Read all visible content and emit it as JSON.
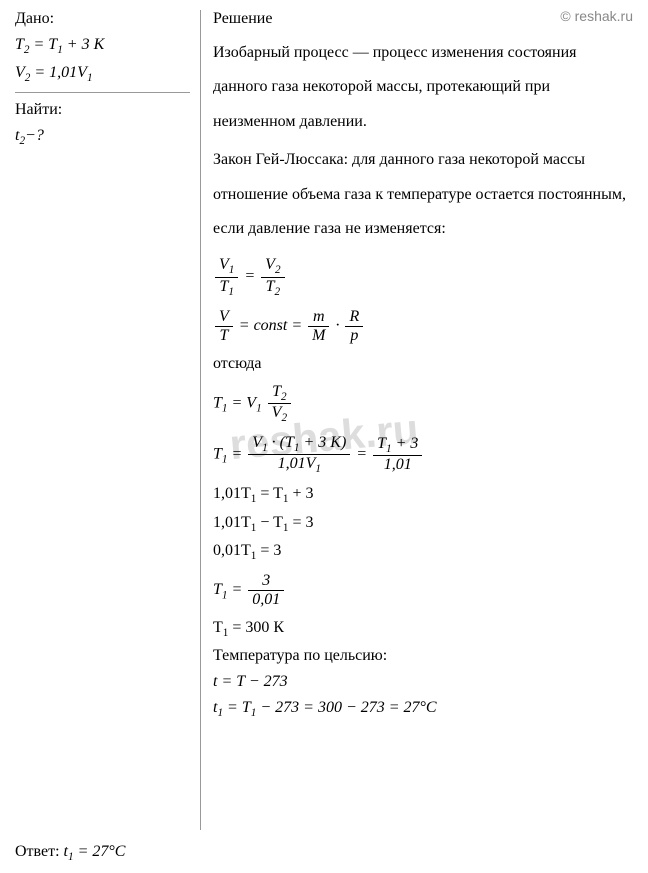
{
  "watermark": {
    "top": "© reshak.ru",
    "center": "reshak.ru"
  },
  "given": {
    "title": "Дано:",
    "line1_a": "T",
    "line1_sub1": "2",
    "line1_b": " = T",
    "line1_sub2": "1",
    "line1_c": " + 3 K",
    "line2_a": "V",
    "line2_sub1": "2",
    "line2_b": " = 1,01V",
    "line2_sub2": "1"
  },
  "find": {
    "title": "Найти:",
    "line_a": "t",
    "line_sub": "2",
    "line_b": "−?"
  },
  "solution": {
    "title": "Решение",
    "para1": "Изобарный процесс — процесс изменения состояния данного газа некоторой массы, протекающий при неизменном давлении.",
    "para2": "Закон Гей-Люссака: для данного газа некоторой массы отношение объема газа к температуре остается постоянным, если давление газа не изменяется:",
    "word_otsjuda": "отсюда",
    "eq3_a": "1,01T",
    "eq3_sub": "1",
    "eq3_b": " = T",
    "eq3_c": " + 3",
    "eq4_a": "1,01T",
    "eq4_sub": "1",
    "eq4_b": " − T",
    "eq4_c": " = 3",
    "eq5_a": "0,01T",
    "eq5_sub": "1",
    "eq5_b": " = 3",
    "eq6_lhs": "T",
    "eq6_sub": "1",
    "eq6_eq": " = ",
    "eq6_num": "3",
    "eq6_den": "0,01",
    "eq7_a": "T",
    "eq7_sub": "1",
    "eq7_b": " = 300 К",
    "celsius_label": "Температура по цельсию:",
    "eq8": "t = T − 273",
    "eq9_a": "t",
    "eq9_sub": "1",
    "eq9_b": " = T",
    "eq9_c": " − 273 = 300 − 273 = 27°C",
    "f1_n1": "V",
    "f1_n1s": "1",
    "f1_d1": "T",
    "f1_d1s": "1",
    "f1_eq": " = ",
    "f1_n2": "V",
    "f1_n2s": "2",
    "f1_d2": "T",
    "f1_d2s": "2",
    "f2_lhs_n": "V",
    "f2_lhs_d": "T",
    "f2_mid": " = const = ",
    "f2_r1_n": "m",
    "f2_r1_d": "M",
    "f2_dot": " · ",
    "f2_r2_n": "R",
    "f2_r2_d": "p",
    "f3_a": "T",
    "f3_sub": "1",
    "f3_b": " = V",
    "f3_sub2": "1",
    "f3_n": "T",
    "f3_ns": "2",
    "f3_d": "V",
    "f3_ds": "2",
    "f4_lhs_a": "T",
    "f4_lhs_sub": "1",
    "f4_eq": " = ",
    "f4_n_a": "V",
    "f4_n_s1": "1",
    "f4_n_b": " · (T",
    "f4_n_s2": "1",
    "f4_n_c": " + 3 K)",
    "f4_d_a": "1,01V",
    "f4_d_s": "1",
    "f4_eq2": " = ",
    "f4_n2_a": "T",
    "f4_n2_s": "1",
    "f4_n2_b": " + 3",
    "f4_d2": "1,01"
  },
  "answer": {
    "label": "Ответ: ",
    "val_a": "t",
    "val_sub": "1",
    "val_b": " = 27°C"
  }
}
